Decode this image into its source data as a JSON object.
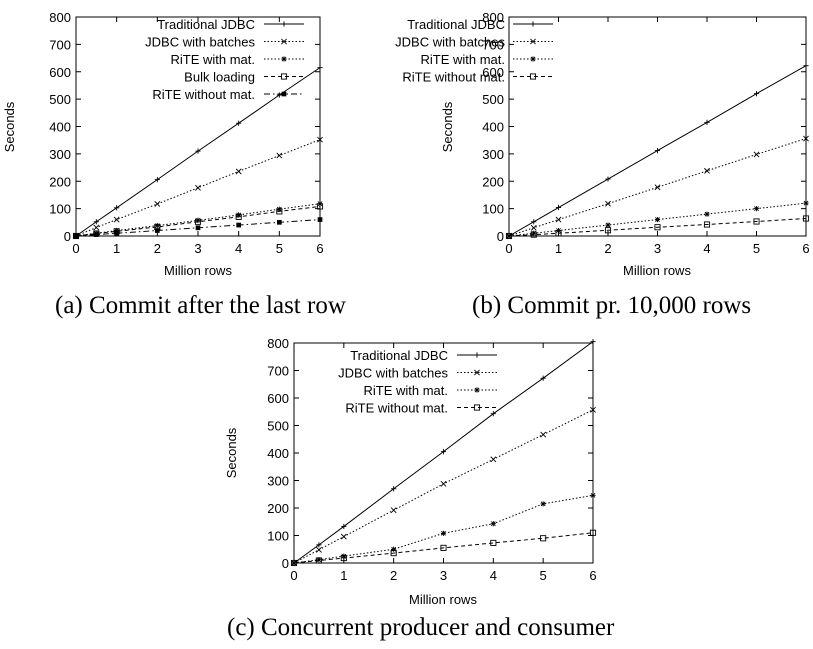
{
  "figure": {
    "captions": [
      "(a) Commit after the last row",
      "(b) Commit pr. 10,000 rows",
      "(c) Concurrent producer and consumer"
    ]
  },
  "chart_data": [
    {
      "type": "line",
      "xlabel": "Million rows",
      "ylabel": "Seconds",
      "xlim": [
        0,
        6
      ],
      "ylim": [
        0,
        800
      ],
      "xticks": [
        0,
        1,
        2,
        3,
        4,
        5,
        6
      ],
      "yticks": [
        0,
        100,
        200,
        300,
        400,
        500,
        600,
        700,
        800
      ],
      "grid": false,
      "legend_position": "top-left",
      "series": [
        {
          "name": "Traditional JDBC",
          "marker": "plus",
          "dash": "solid",
          "x": [
            0,
            0.5,
            1,
            2,
            3,
            4,
            5,
            6
          ],
          "y": [
            0,
            52,
            103,
            206,
            310,
            412,
            515,
            615
          ]
        },
        {
          "name": "JDBC with batches",
          "marker": "x",
          "dash": "dotted",
          "x": [
            0,
            0.5,
            1,
            2,
            3,
            4,
            5,
            6
          ],
          "y": [
            0,
            31,
            60,
            117,
            176,
            236,
            294,
            352
          ]
        },
        {
          "name": "RiTE with mat.",
          "marker": "star",
          "dash": "dotted",
          "x": [
            0,
            0.5,
            1,
            2,
            3,
            4,
            5,
            6
          ],
          "y": [
            0,
            10,
            20,
            38,
            57,
            77,
            98,
            118
          ]
        },
        {
          "name": "Bulk loading",
          "marker": "square-open",
          "dash": "dashed",
          "x": [
            0,
            0.5,
            1,
            2,
            3,
            4,
            5,
            6
          ],
          "y": [
            0,
            9,
            17,
            33,
            52,
            70,
            90,
            108
          ]
        },
        {
          "name": "RiTE without mat.",
          "marker": "square-filled",
          "dash": "dashdot",
          "x": [
            0,
            0.5,
            1,
            2,
            3,
            4,
            5,
            6
          ],
          "y": [
            0,
            5,
            10,
            20,
            30,
            40,
            50,
            60
          ]
        }
      ]
    },
    {
      "type": "line",
      "xlabel": "Million rows",
      "ylabel": "Seconds",
      "xlim": [
        0,
        6
      ],
      "ylim": [
        0,
        800
      ],
      "xticks": [
        0,
        1,
        2,
        3,
        4,
        5,
        6
      ],
      "yticks": [
        0,
        100,
        200,
        300,
        400,
        500,
        600,
        700,
        800
      ],
      "grid": false,
      "legend_position": "top-left",
      "series": [
        {
          "name": "Traditional JDBC",
          "marker": "plus",
          "dash": "solid",
          "x": [
            0,
            0.5,
            1,
            2,
            3,
            4,
            5,
            6
          ],
          "y": [
            0,
            52,
            104,
            208,
            312,
            415,
            520,
            622
          ]
        },
        {
          "name": "JDBC with batches",
          "marker": "x",
          "dash": "dotted",
          "x": [
            0,
            0.5,
            1,
            2,
            3,
            4,
            5,
            6
          ],
          "y": [
            0,
            30,
            60,
            118,
            178,
            238,
            298,
            356
          ]
        },
        {
          "name": "RiTE with mat.",
          "marker": "star",
          "dash": "dotted",
          "x": [
            0,
            0.5,
            1,
            2,
            3,
            4,
            5,
            6
          ],
          "y": [
            0,
            10,
            20,
            40,
            60,
            80,
            100,
            120
          ]
        },
        {
          "name": "RiTE without mat.",
          "marker": "square-open",
          "dash": "dashed",
          "x": [
            0,
            0.5,
            1,
            2,
            3,
            4,
            5,
            6
          ],
          "y": [
            0,
            5,
            10,
            21,
            32,
            42,
            53,
            64
          ]
        }
      ]
    },
    {
      "type": "line",
      "xlabel": "Million rows",
      "ylabel": "Seconds",
      "xlim": [
        0,
        6
      ],
      "ylim": [
        0,
        800
      ],
      "xticks": [
        0,
        1,
        2,
        3,
        4,
        5,
        6
      ],
      "yticks": [
        0,
        100,
        200,
        300,
        400,
        500,
        600,
        700,
        800
      ],
      "grid": false,
      "legend_position": "top-left",
      "series": [
        {
          "name": "Traditional JDBC",
          "marker": "plus",
          "dash": "solid",
          "x": [
            0,
            0.5,
            1,
            2,
            3,
            4,
            5,
            6
          ],
          "y": [
            0,
            66,
            133,
            270,
            405,
            543,
            672,
            805
          ]
        },
        {
          "name": "JDBC with batches",
          "marker": "x",
          "dash": "dotted",
          "x": [
            0,
            0.5,
            1,
            2,
            3,
            4,
            5,
            6
          ],
          "y": [
            0,
            48,
            96,
            192,
            288,
            377,
            467,
            557
          ]
        },
        {
          "name": "RiTE with mat.",
          "marker": "star",
          "dash": "dotted",
          "x": [
            0,
            0.5,
            1,
            2,
            3,
            4,
            5,
            6
          ],
          "y": [
            0,
            12,
            25,
            50,
            108,
            143,
            215,
            246
          ]
        },
        {
          "name": "RiTE without mat.",
          "marker": "square-open",
          "dash": "dashed",
          "x": [
            0,
            0.5,
            1,
            2,
            3,
            4,
            5,
            6
          ],
          "y": [
            0,
            9,
            18,
            36,
            55,
            73,
            90,
            110
          ]
        }
      ]
    }
  ]
}
